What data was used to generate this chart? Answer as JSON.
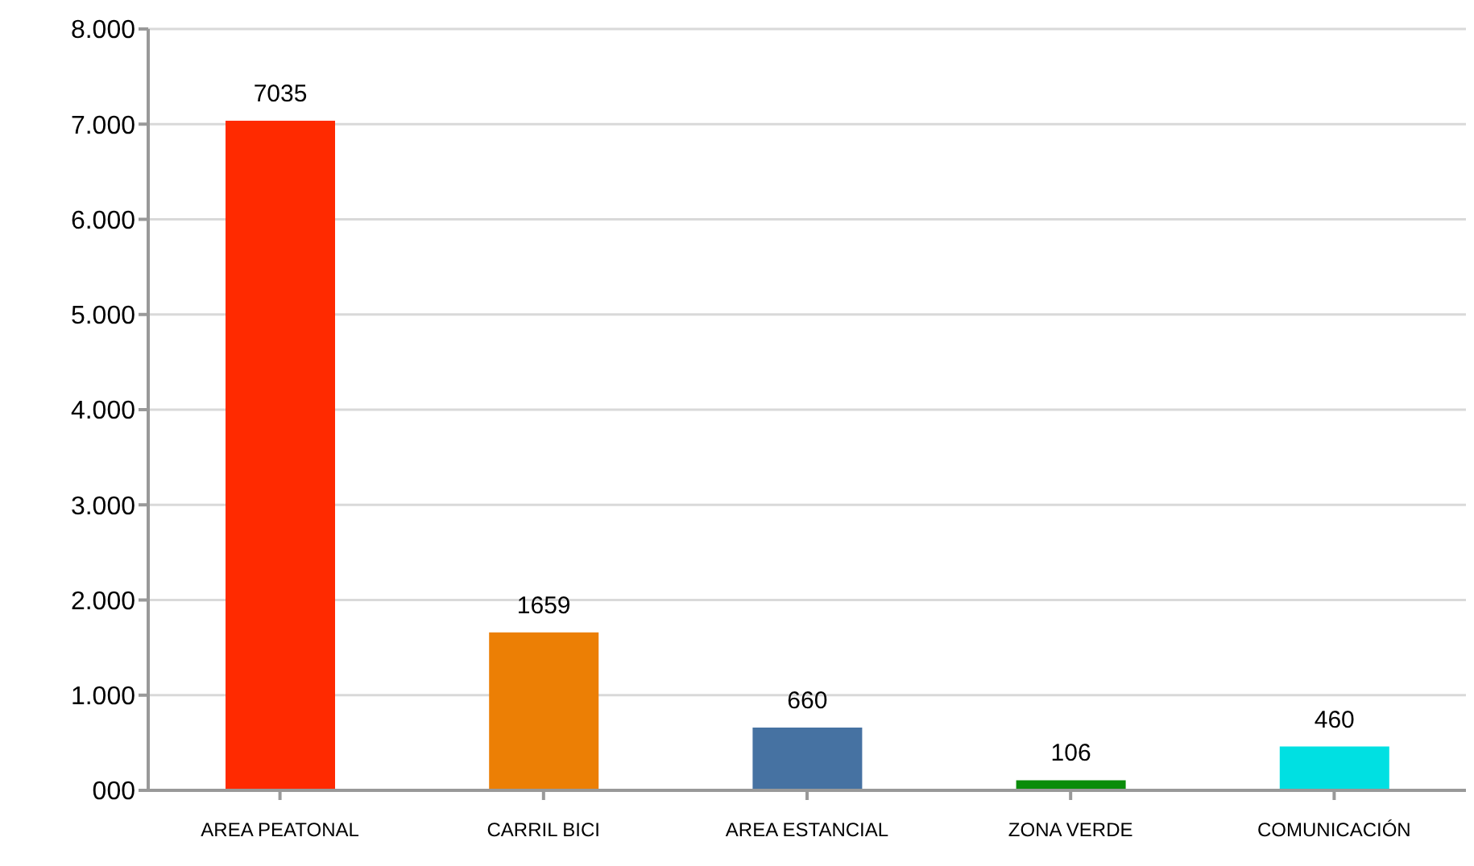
{
  "chart_data": {
    "type": "bar",
    "categories": [
      "AREA PEATONAL",
      "CARRIL BICI",
      "AREA ESTANCIAL",
      "ZONA VERDE",
      "COMUNICACIÓN"
    ],
    "values": [
      7035,
      1659,
      660,
      106,
      460
    ],
    "colors": [
      "#ff2a00",
      "#ec7f05",
      "#4672a2",
      "#0a8c0a",
      "#00e0e2"
    ],
    "ylim": [
      0,
      8000
    ],
    "yticks": [
      {
        "value": 0,
        "label": "000"
      },
      {
        "value": 1000,
        "label": "1.000"
      },
      {
        "value": 2000,
        "label": "2.000"
      },
      {
        "value": 3000,
        "label": "3.000"
      },
      {
        "value": 4000,
        "label": "4.000"
      },
      {
        "value": 5000,
        "label": "5.000"
      },
      {
        "value": 6000,
        "label": "6.000"
      },
      {
        "value": 7000,
        "label": "7.000"
      },
      {
        "value": 8000,
        "label": "8.000"
      }
    ],
    "grid": "y",
    "data_labels": true
  }
}
